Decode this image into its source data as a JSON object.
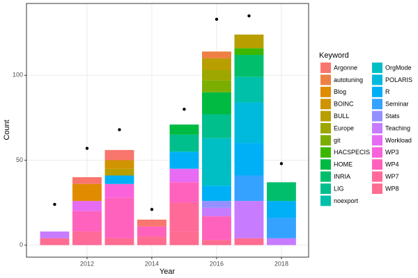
{
  "chart_data": {
    "type": "bar",
    "stacked": true,
    "grid": true,
    "x_label": "Year",
    "y_label": "Count",
    "legend_title": "Keyword",
    "x": [
      2011,
      2012,
      2013,
      2014,
      2015,
      2016,
      2017,
      2018
    ],
    "xlim": [
      2010.13,
      2018.84
    ],
    "xticks": [
      2012,
      2014,
      2016,
      2018
    ],
    "ylim": [
      -7.1,
      142.3
    ],
    "yticks": [
      0,
      50,
      100
    ],
    "points": [
      24,
      57,
      68,
      21,
      80,
      133,
      135,
      48
    ],
    "points_color": "#000000",
    "series": [
      {
        "name": "Argonne",
        "color": "#F8766D",
        "values": [
          null,
          4,
          6,
          4,
          null,
          null,
          null,
          null
        ]
      },
      {
        "name": "autotuning",
        "color": "#EE8044",
        "values": [
          null,
          null,
          null,
          null,
          null,
          4,
          null,
          null
        ]
      },
      {
        "name": "Blog",
        "color": "#E08B00",
        "values": [
          null,
          10,
          null,
          null,
          null,
          null,
          null,
          null
        ]
      },
      {
        "name": "BOINC",
        "color": "#CF9400",
        "values": [
          null,
          null,
          5,
          null,
          null,
          null,
          null,
          null
        ]
      },
      {
        "name": "BULL",
        "color": "#B99E00",
        "values": [
          null,
          null,
          4,
          null,
          null,
          7,
          8,
          null
        ]
      },
      {
        "name": "Europe",
        "color": "#9DA700",
        "values": [
          null,
          null,
          null,
          null,
          null,
          6,
          null,
          null
        ]
      },
      {
        "name": "git",
        "color": "#7CAE00",
        "values": [
          null,
          null,
          null,
          null,
          null,
          7,
          null,
          null
        ]
      },
      {
        "name": "HACSPECIS",
        "color": "#3DB600",
        "values": [
          null,
          null,
          null,
          null,
          null,
          null,
          4,
          null
        ]
      },
      {
        "name": "HOME",
        "color": "#00BA42",
        "values": [
          null,
          null,
          null,
          null,
          6,
          13,
          null,
          null
        ]
      },
      {
        "name": "INRIA",
        "color": "#00BE6C",
        "values": [
          null,
          null,
          null,
          null,
          null,
          null,
          13,
          11
        ]
      },
      {
        "name": "LIG",
        "color": "#00BF8C",
        "values": [
          null,
          null,
          null,
          null,
          10,
          14,
          null,
          null
        ]
      },
      {
        "name": "noexport",
        "color": "#00C0AA",
        "values": [
          null,
          null,
          null,
          null,
          null,
          null,
          15,
          null
        ]
      },
      {
        "name": "OrgMode",
        "color": "#00BFC4",
        "values": [
          null,
          null,
          null,
          null,
          null,
          28,
          null,
          null
        ]
      },
      {
        "name": "POLARIS",
        "color": "#00BADE",
        "values": [
          null,
          null,
          null,
          null,
          null,
          null,
          24,
          null
        ]
      },
      {
        "name": "R",
        "color": "#00B0F6",
        "values": [
          null,
          null,
          5,
          null,
          10,
          9,
          19,
          10
        ]
      },
      {
        "name": "Seminar",
        "color": "#35A2FF",
        "values": [
          null,
          null,
          null,
          null,
          null,
          null,
          15,
          12
        ]
      },
      {
        "name": "Stats",
        "color": "#9590FF",
        "values": [
          null,
          null,
          null,
          null,
          null,
          4,
          null,
          null
        ]
      },
      {
        "name": "Teaching",
        "color": "#C77CFF",
        "values": [
          4,
          null,
          null,
          null,
          null,
          5,
          22,
          4
        ]
      },
      {
        "name": "Workload",
        "color": "#E76BF3",
        "values": [
          null,
          6,
          null,
          null,
          8,
          null,
          null,
          null
        ]
      },
      {
        "name": "WP3",
        "color": "#FA62DB",
        "values": [
          null,
          null,
          8,
          null,
          null,
          null,
          null,
          null
        ]
      },
      {
        "name": "WP4",
        "color": "#FF62BC",
        "values": [
          null,
          12,
          24,
          6,
          12,
          14,
          null,
          null
        ]
      },
      {
        "name": "WP7",
        "color": "#FF6A98",
        "values": [
          null,
          8,
          null,
          null,
          17,
          null,
          null,
          null
        ]
      },
      {
        "name": "WP8",
        "color": "#FF6C91",
        "values": [
          4,
          null,
          4,
          5,
          8,
          3,
          4,
          null
        ]
      }
    ]
  }
}
